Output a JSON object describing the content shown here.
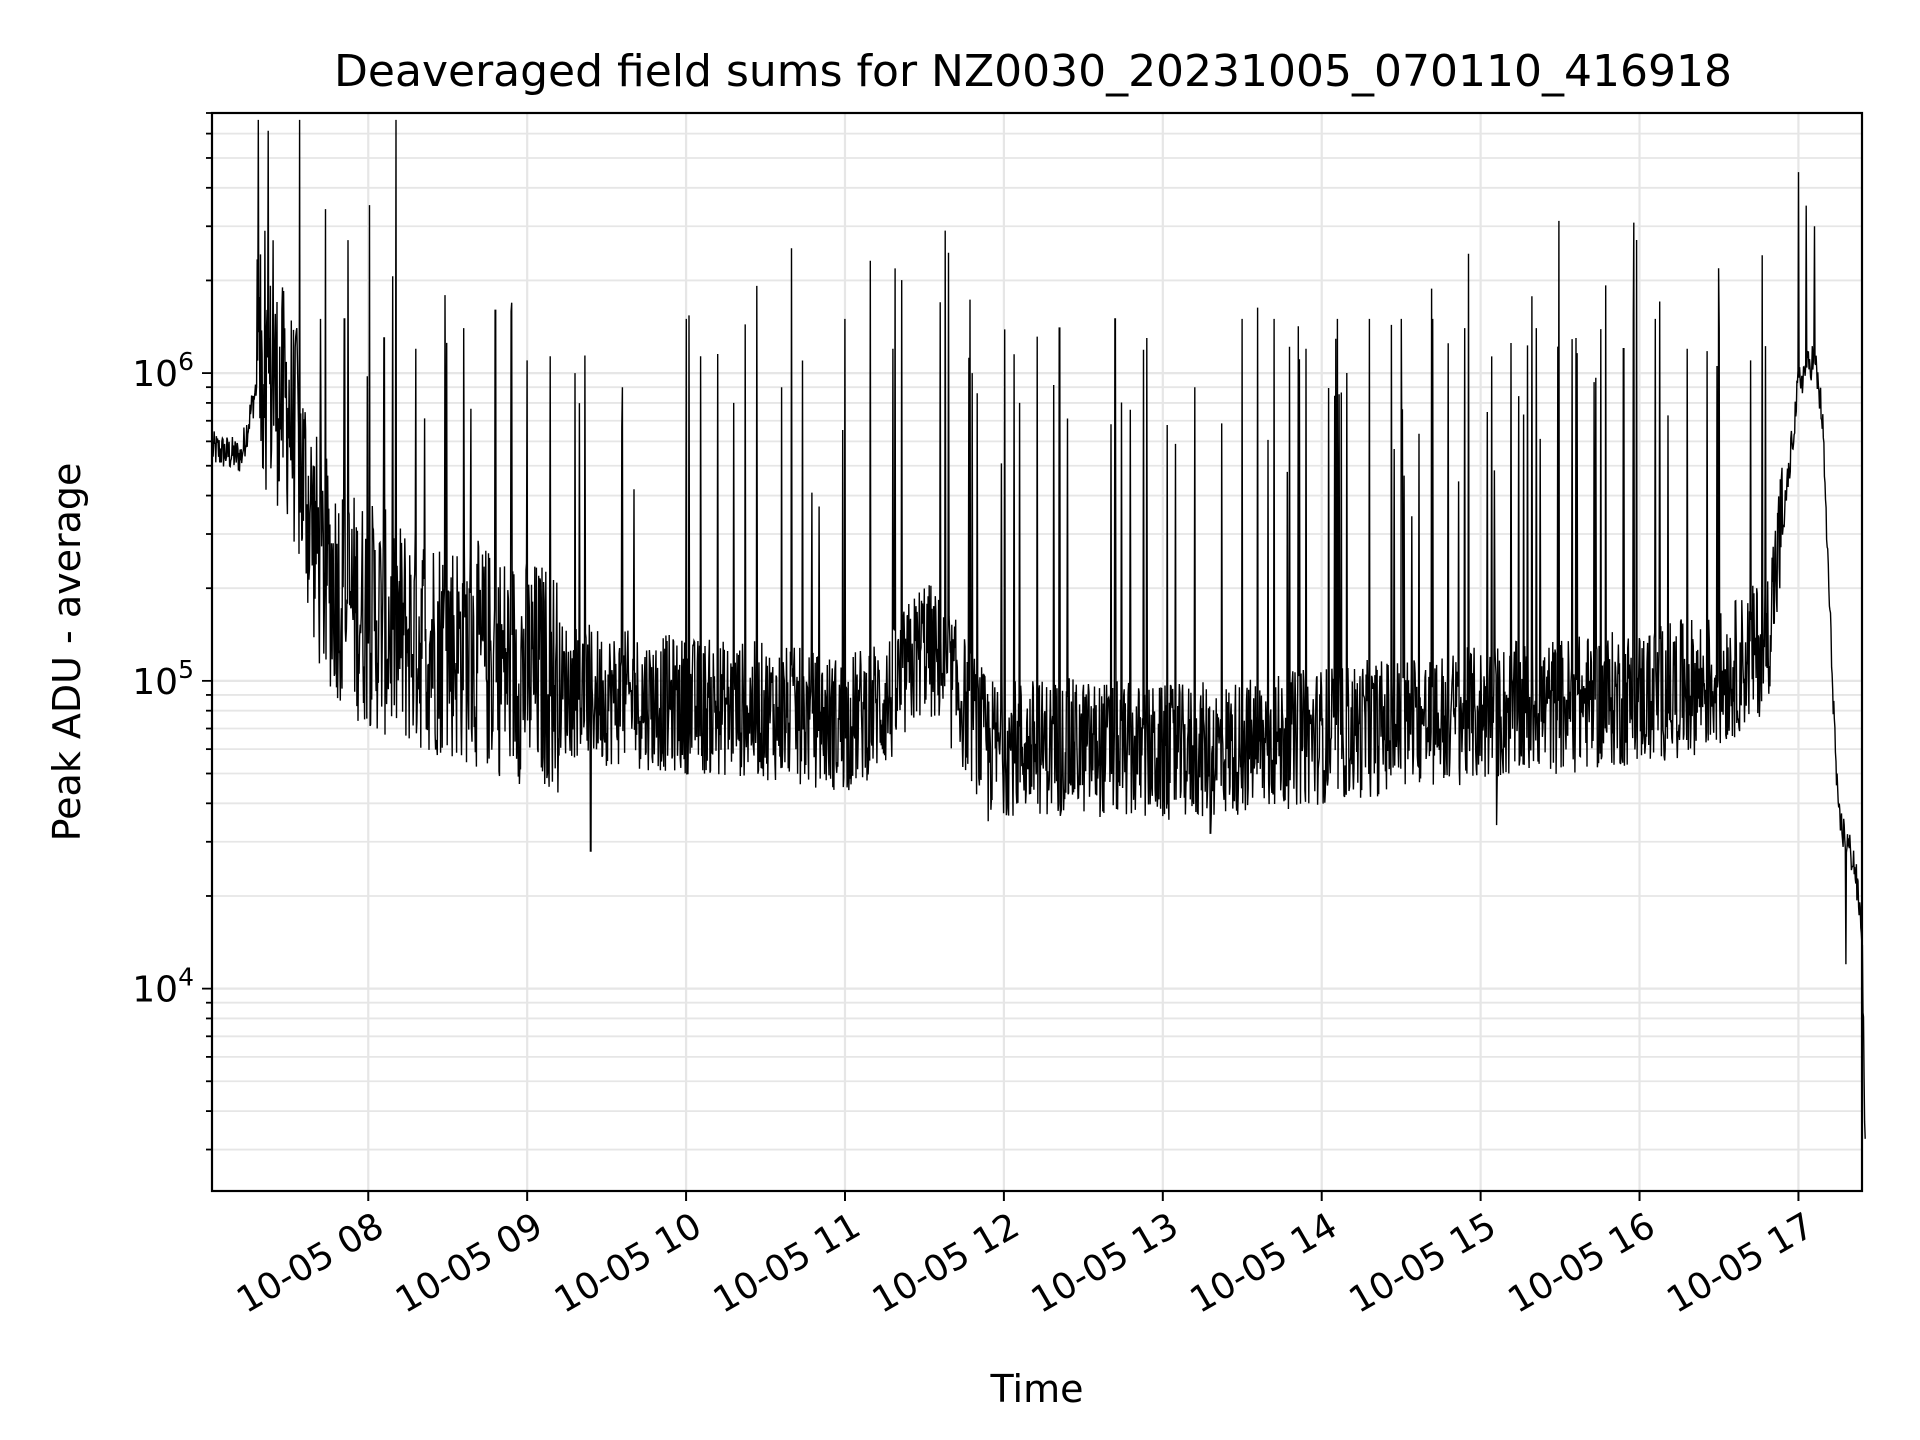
{
  "chart_data": {
    "type": "line",
    "title": "Deaveraged field sums for NZ0030_20231005_070110_416918",
    "xlabel": "Time",
    "ylabel": "Peak ADU - average",
    "x_range": [
      "10-05 07:01",
      "10-05 17:24"
    ],
    "y_scale": "log",
    "ylim": [
      2200,
      7000000
    ],
    "grid": true,
    "line_color": "#000000",
    "x_ticks": [
      {
        "hour": 8,
        "label": "10-05 08"
      },
      {
        "hour": 9,
        "label": "10-05 09"
      },
      {
        "hour": 10,
        "label": "10-05 10"
      },
      {
        "hour": 11,
        "label": "10-05 11"
      },
      {
        "hour": 12,
        "label": "10-05 12"
      },
      {
        "hour": 13,
        "label": "10-05 13"
      },
      {
        "hour": 14,
        "label": "10-05 14"
      },
      {
        "hour": 15,
        "label": "10-05 15"
      },
      {
        "hour": 16,
        "label": "10-05 16"
      },
      {
        "hour": 17,
        "label": "10-05 17"
      }
    ],
    "y_ticks": [
      {
        "value": 10000,
        "base": "10",
        "exp": "4"
      },
      {
        "value": 100000,
        "base": "10",
        "exp": "5"
      },
      {
        "value": 1000000,
        "base": "10",
        "exp": "6"
      }
    ],
    "series": [
      {
        "baseline_envelope": [
          [
            7.02,
            550000
          ],
          [
            7.2,
            520000
          ],
          [
            7.3,
            900000
          ],
          [
            7.5,
            650000
          ],
          [
            7.7,
            200000
          ],
          [
            7.9,
            150000
          ],
          [
            8.2,
            120000
          ],
          [
            8.5,
            110000
          ],
          [
            9.0,
            90000
          ],
          [
            9.5,
            80000
          ],
          [
            10.0,
            75000
          ],
          [
            10.5,
            72000
          ],
          [
            11.0,
            65000
          ],
          [
            11.3,
            80000
          ],
          [
            11.5,
            120000
          ],
          [
            11.7,
            85000
          ],
          [
            11.9,
            55000
          ],
          [
            12.5,
            55000
          ],
          [
            13.0,
            52000
          ],
          [
            13.5,
            55000
          ],
          [
            14.0,
            60000
          ],
          [
            14.5,
            65000
          ],
          [
            15.0,
            70000
          ],
          [
            15.5,
            75000
          ],
          [
            16.0,
            80000
          ],
          [
            16.5,
            90000
          ],
          [
            16.8,
            120000
          ],
          [
            16.9,
            300000
          ],
          [
            17.0,
            900000
          ],
          [
            17.1,
            1100000
          ],
          [
            17.15,
            700000
          ],
          [
            17.2,
            150000
          ],
          [
            17.25,
            35000
          ],
          [
            17.35,
            25000
          ],
          [
            17.4,
            15000
          ],
          [
            17.42,
            3000
          ]
        ],
        "spikes": [
          [
            7.35,
            2900000
          ],
          [
            7.4,
            2700000
          ],
          [
            7.55,
            1400000
          ],
          [
            7.7,
            1500000
          ],
          [
            7.85,
            1500000
          ],
          [
            8.1,
            1300000
          ],
          [
            8.3,
            1200000
          ],
          [
            8.6,
            1400000
          ],
          [
            8.8,
            1600000
          ],
          [
            9.0,
            1100000
          ],
          [
            9.3,
            1000000
          ],
          [
            9.6,
            900000
          ],
          [
            10.0,
            1500000
          ],
          [
            10.3,
            800000
          ],
          [
            10.6,
            900000
          ],
          [
            11.0,
            1500000
          ],
          [
            11.3,
            1200000
          ],
          [
            11.6,
            1700000
          ],
          [
            11.8,
            1000000
          ],
          [
            12.1,
            800000
          ],
          [
            12.35,
            1400000
          ],
          [
            12.7,
            1500000
          ],
          [
            12.9,
            1300000
          ],
          [
            13.2,
            900000
          ],
          [
            13.5,
            1500000
          ],
          [
            13.7,
            1500000
          ],
          [
            13.9,
            1200000
          ],
          [
            14.1,
            1500000
          ],
          [
            14.3,
            1500000
          ],
          [
            14.5,
            1500000
          ],
          [
            14.7,
            1500000
          ],
          [
            14.9,
            1400000
          ],
          [
            15.1,
            1200000
          ],
          [
            15.35,
            1400000
          ],
          [
            15.6,
            1300000
          ],
          [
            15.9,
            1200000
          ],
          [
            16.1,
            1500000
          ],
          [
            16.3,
            1200000
          ],
          [
            16.5,
            1400000
          ],
          [
            16.7,
            1100000
          ],
          [
            17.0,
            4500000
          ],
          [
            17.05,
            3500000
          ],
          [
            17.1,
            3000000
          ]
        ],
        "dips": [
          [
            9.4,
            28000
          ],
          [
            11.9,
            35000
          ],
          [
            13.3,
            32000
          ],
          [
            15.1,
            34000
          ],
          [
            17.3,
            12000
          ]
        ]
      }
    ]
  }
}
